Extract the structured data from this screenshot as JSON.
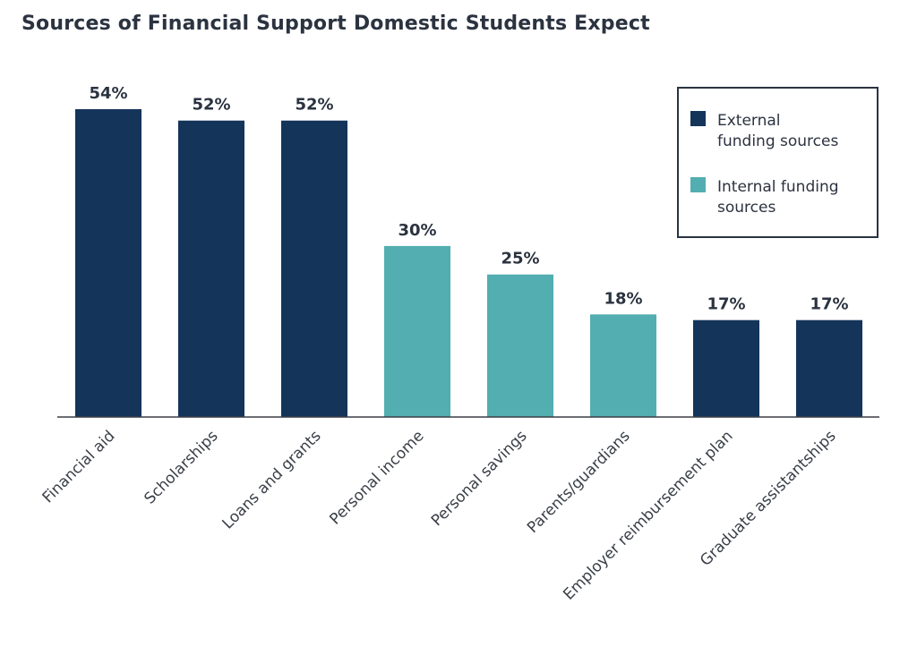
{
  "chart_data": {
    "type": "bar",
    "title": "Sources of Financial Support Domestic Students Expect",
    "xlabel": "",
    "ylabel": "",
    "categories": [
      "Financial aid",
      "Scholarships",
      "Loans and grants",
      "Personal income",
      "Personal savings",
      "Parents/guardians",
      "Employer reimbursement plan",
      "Graduate assistantships"
    ],
    "values": [
      54,
      52,
      52,
      30,
      25,
      18,
      17,
      17
    ],
    "value_labels": [
      "54%",
      "52%",
      "52%",
      "30%",
      "25%",
      "18%",
      "17%",
      "17%"
    ],
    "groups": [
      "external",
      "external",
      "external",
      "internal",
      "internal",
      "internal",
      "external",
      "external"
    ],
    "series": [
      {
        "key": "external",
        "name_lines": [
          "External",
          "funding sources"
        ],
        "color": "#14345a"
      },
      {
        "key": "internal",
        "name_lines": [
          "Internal funding",
          "sources"
        ],
        "color": "#52aeb0"
      }
    ],
    "ylim": [
      0,
      54
    ],
    "grid": false,
    "legend_position": "top-right"
  }
}
